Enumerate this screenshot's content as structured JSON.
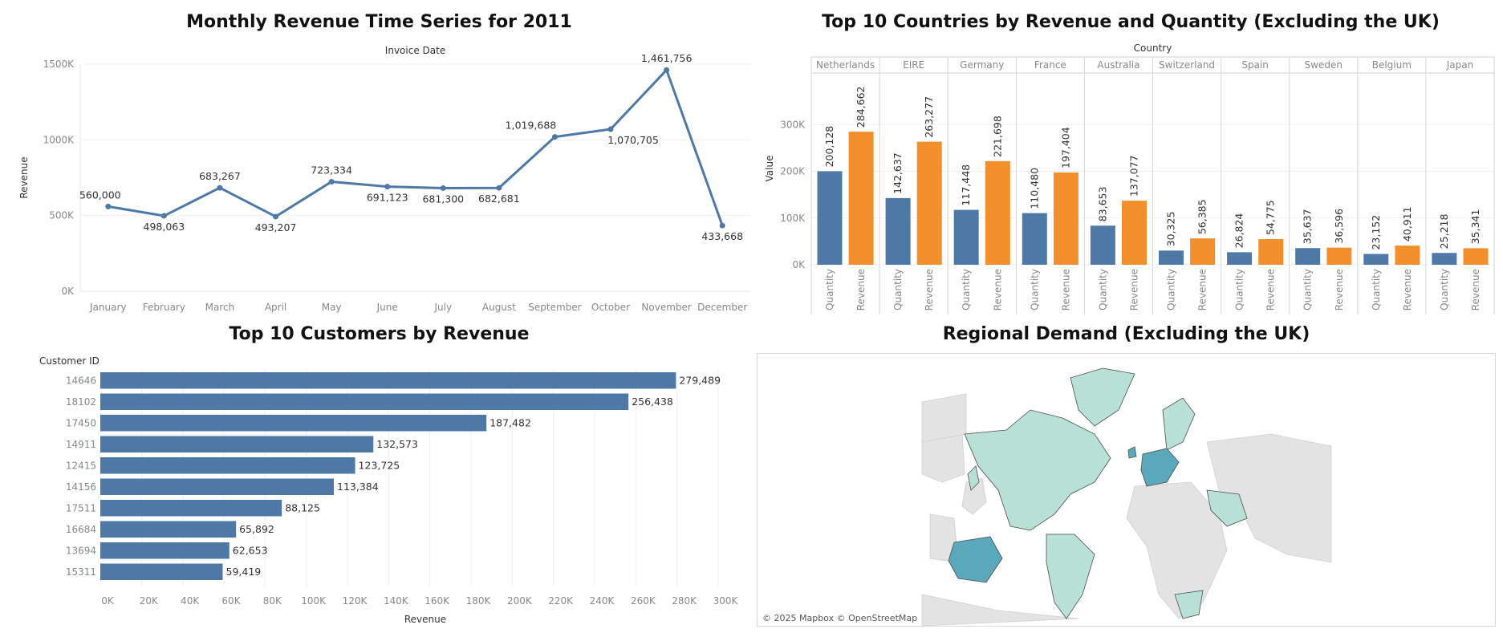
{
  "chart_data": [
    {
      "type": "line",
      "title": "Monthly Revenue Time Series for 2011",
      "xlabel": "Invoice Date",
      "ylabel": "Revenue",
      "categories": [
        "January",
        "February",
        "March",
        "April",
        "May",
        "June",
        "July",
        "August",
        "September",
        "October",
        "November",
        "December"
      ],
      "values": [
        560000,
        498063,
        683267,
        493207,
        723334,
        691123,
        681300,
        682681,
        1019688,
        1070705,
        1461756,
        433668
      ],
      "data_labels": [
        "560,000",
        "498,063",
        "683,267",
        "493,207",
        "723,334",
        "691,123",
        "681,300",
        "682,681",
        "1,019,688",
        "1,070,705",
        "1,461,756",
        "433,668"
      ],
      "yticks": [
        "0K",
        "500K",
        "1000K",
        "1500K"
      ],
      "ylim": [
        0,
        1500000
      ],
      "color": "#4e79a7",
      "grid": true
    },
    {
      "type": "bar",
      "title": "Top 10 Countries by Revenue and Quantity (Excluding the UK)",
      "xlabel": "Country",
      "ylabel": "Value",
      "categories": [
        "Netherlands",
        "EIRE",
        "Germany",
        "France",
        "Australia",
        "Switzerland",
        "Spain",
        "Sweden",
        "Belgium",
        "Japan"
      ],
      "measures": [
        "Quantity",
        "Revenue"
      ],
      "series": [
        {
          "name": "Quantity",
          "color": "#4e79a7",
          "values": [
            200128,
            142637,
            117448,
            110480,
            83653,
            30325,
            26824,
            35637,
            23152,
            25218
          ],
          "labels": [
            "200,128",
            "142,637",
            "117,448",
            "110,480",
            "83,653",
            "30,325",
            "26,824",
            "35,637",
            "23,152",
            "25,218"
          ]
        },
        {
          "name": "Revenue",
          "color": "#f28e2b",
          "values": [
            284662,
            263277,
            221698,
            197404,
            137077,
            56385,
            54775,
            36596,
            40911,
            35341
          ],
          "labels": [
            "284,662",
            "263,277",
            "221,698",
            "197,404",
            "137,077",
            "56,385",
            "54,775",
            "36,596",
            "40,911",
            "35,341"
          ]
        }
      ],
      "yticks": [
        "0K",
        "100K",
        "200K",
        "300K"
      ],
      "ylim": [
        0,
        400000
      ],
      "grid": true
    },
    {
      "type": "bar",
      "orientation": "horizontal",
      "title": "Top 10 Customers by Revenue",
      "ylabel": "Customer ID",
      "xlabel": "Revenue",
      "categories": [
        "14646",
        "18102",
        "17450",
        "14911",
        "12415",
        "14156",
        "17511",
        "16684",
        "13694",
        "15311"
      ],
      "values": [
        279489,
        256438,
        187482,
        132573,
        123725,
        113384,
        88125,
        65892,
        62653,
        59419
      ],
      "data_labels": [
        "279,489",
        "256,438",
        "187,482",
        "132,573",
        "123,725",
        "113,384",
        "88,125",
        "65,892",
        "62,653",
        "59,419"
      ],
      "xticks": [
        "0K",
        "20K",
        "40K",
        "60K",
        "80K",
        "100K",
        "120K",
        "140K",
        "160K",
        "180K",
        "200K",
        "220K",
        "240K",
        "260K",
        "280K",
        "300K"
      ],
      "xlim": [
        0,
        300000
      ],
      "color": "#4e79a7",
      "grid": true
    }
  ],
  "map": {
    "title": "Regional Demand (Excluding the UK)",
    "credit": "© 2025 Mapbox © OpenStreetMap",
    "colors": {
      "low": "#b9e0d6",
      "mid": "#8cc9d0",
      "high": "#5aa8bb",
      "none": "#e3e3e3",
      "sea": "#ffffff"
    }
  }
}
